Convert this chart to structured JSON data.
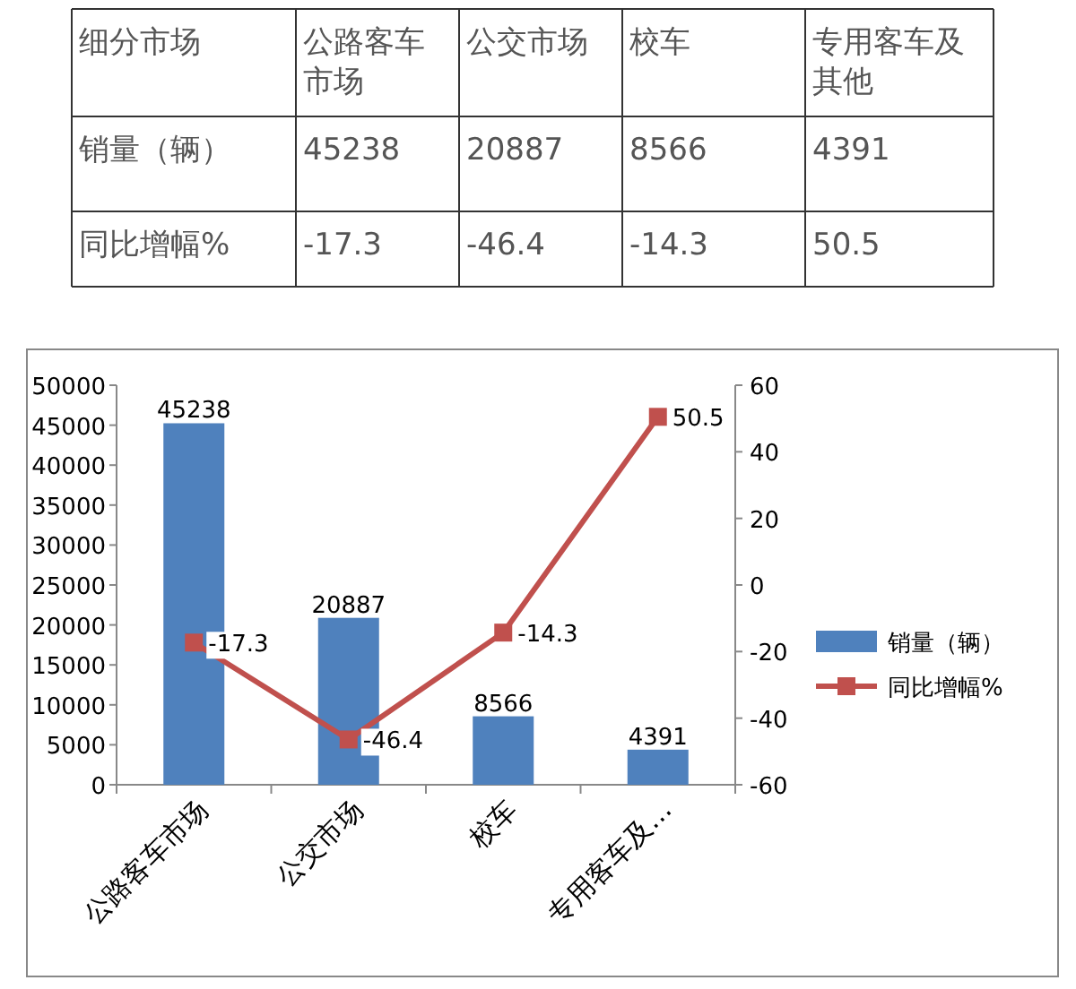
{
  "chart_data": [
    {
      "type": "other",
      "data_labels": true,
      "annotations": [
        "细分市场"
      ],
      "categories": [
        "公路客车市场",
        "公交市场",
        "校车",
        "专用客车及其他"
      ],
      "series": [
        {
          "name": "销量（辆）",
          "values": [
            45238,
            20887,
            8566,
            4391
          ]
        },
        {
          "name": "同比增幅%",
          "values": [
            -17.3,
            -46.4,
            -14.3,
            50.5
          ]
        }
      ]
    },
    {
      "type": "bar",
      "categories": [
        "公路客车市场",
        "公交市场",
        "校车",
        "专用客车及…"
      ],
      "series": [
        {
          "name": "销量（辆）",
          "type": "bar",
          "color": "#4f81bd",
          "values": [
            45238,
            20887,
            8566,
            4391
          ]
        },
        {
          "name": "同比增幅%",
          "type": "line",
          "axis": "y2",
          "color": "#c0504d",
          "values": [
            -17.3,
            -46.4,
            -14.3,
            50.5
          ]
        }
      ],
      "ylim": [
        0,
        50000
      ],
      "yticks": [
        0,
        5000,
        10000,
        15000,
        20000,
        25000,
        30000,
        35000,
        40000,
        45000,
        50000
      ],
      "y2lim": [
        -60,
        60
      ],
      "y2ticks": [
        -60,
        -40,
        -20,
        0,
        20,
        40,
        60
      ],
      "data_labels": true,
      "legend": "right",
      "marker": "square",
      "grid": false
    }
  ]
}
